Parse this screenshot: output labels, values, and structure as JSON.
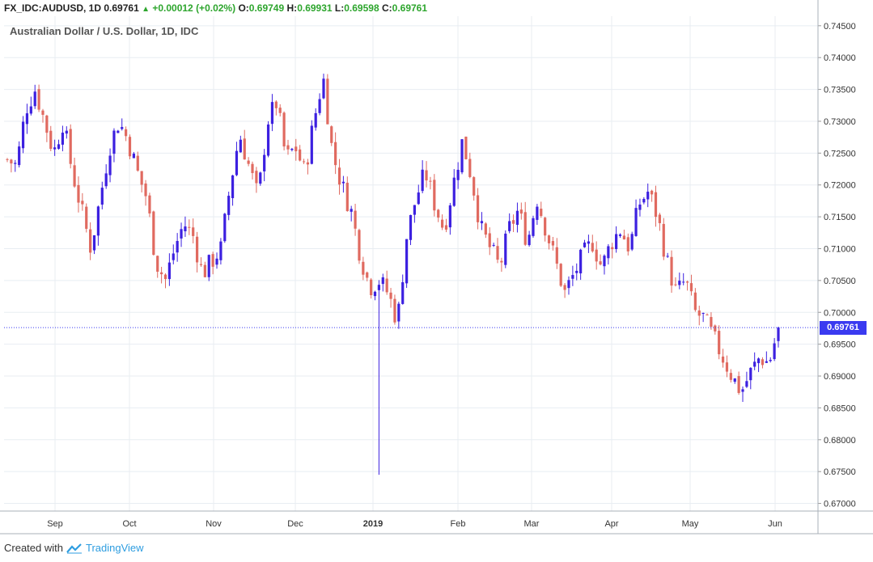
{
  "header": {
    "symbol": "FX_IDC:AUDUSD, 1D",
    "last": "0.69761",
    "change": "+0.00012 (+0.02%)",
    "o_label": "O:",
    "o_value": "0.69749",
    "h_label": "H:",
    "h_value": "0.69931",
    "l_label": "L:",
    "l_value": "0.69598",
    "c_label": "C:",
    "c_value": "0.69761"
  },
  "subtitle": "Australian Dollar / U.S. Dollar, 1D, IDC",
  "footer": {
    "created_with": "Created with",
    "brand": "TradingView"
  },
  "colors": {
    "up": "#3c20e0",
    "down": "#e06a60",
    "grid": "#e8edf2",
    "price_line": "#3a3af0",
    "accent_green": "#2da52d"
  },
  "chart_data": {
    "type": "candlestick",
    "title": "Australian Dollar / U.S. Dollar, 1D, IDC",
    "xlabel": "",
    "ylabel": "",
    "ylim": [
      0.6688,
      0.7465
    ],
    "y_ticks": [
      "0.74500",
      "0.74000",
      "0.73500",
      "0.73000",
      "0.72500",
      "0.72000",
      "0.71500",
      "0.71000",
      "0.70500",
      "0.70000",
      "0.69500",
      "0.69000",
      "0.68500",
      "0.68000",
      "0.67500",
      "0.67000"
    ],
    "x_ticks": [
      "Sep",
      "Oct",
      "Nov",
      "Dec",
      "2019",
      "Feb",
      "Mar",
      "Apr",
      "May",
      "Jun"
    ],
    "last_price": "0.69761",
    "last_value": 0.69761,
    "grid": true,
    "series": [
      {
        "name": "FX_IDC:AUDUSD",
        "ohlc_note": "daily candles approximated from the image",
        "waypoints": [
          0.724,
          0.723,
          0.732,
          0.735,
          0.73,
          0.725,
          0.73,
          0.722,
          0.716,
          0.71,
          0.718,
          0.726,
          0.73,
          0.727,
          0.722,
          0.718,
          0.708,
          0.705,
          0.71,
          0.714,
          0.712,
          0.706,
          0.708,
          0.71,
          0.72,
          0.728,
          0.723,
          0.718,
          0.73,
          0.733,
          0.724,
          0.726,
          0.722,
          0.73,
          0.737,
          0.725,
          0.72,
          0.716,
          0.709,
          0.704,
          0.705,
          0.703,
          0.6985,
          0.712,
          0.718,
          0.722,
          0.717,
          0.713,
          0.72,
          0.727,
          0.721,
          0.713,
          0.71,
          0.707,
          0.713,
          0.716,
          0.711,
          0.718,
          0.713,
          0.708,
          0.703,
          0.706,
          0.709,
          0.711,
          0.707,
          0.711,
          0.713,
          0.71,
          0.717,
          0.719,
          0.715,
          0.708,
          0.703,
          0.705,
          0.7,
          0.699,
          0.696,
          0.693,
          0.69,
          0.6875,
          0.6905,
          0.693,
          0.692,
          0.6976
        ]
      }
    ]
  }
}
